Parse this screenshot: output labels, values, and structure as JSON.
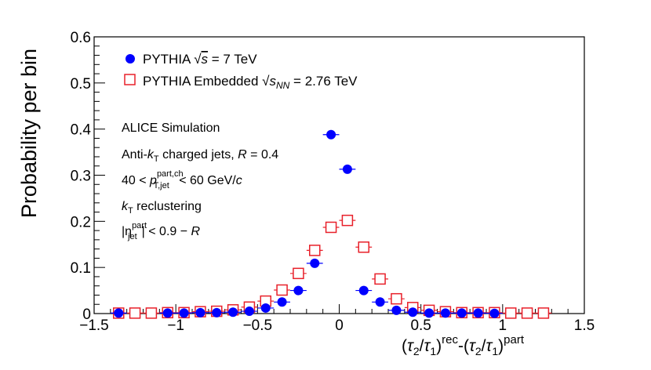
{
  "chart_data": {
    "type": "scatter",
    "title": "",
    "ylabel": "Probability per bin",
    "xlabel": {
      "lead": "(",
      "tau2": "τ",
      "sub2": "2",
      "slash": "/",
      "tau1": "τ",
      "sub1": "1",
      "close_rec": ")",
      "sup_rec": "rec",
      "dash": "-(",
      "tau2b": "τ",
      "sub2b": "2",
      "slashb": "/",
      "tau1b": "τ",
      "sub1b": "1",
      "close_part": ")",
      "sup_part": "part"
    },
    "xlim": [
      -1.5,
      1.5
    ],
    "ylim": [
      0,
      0.6
    ],
    "xticks": [
      -1.5,
      -1,
      -0.5,
      0,
      0.5,
      1,
      1.5
    ],
    "xtick_labels": [
      "−1.5",
      "−1",
      "−0.5",
      "0",
      "0.5",
      "1",
      "1.5"
    ],
    "yticks": [
      0,
      0.1,
      0.2,
      0.3,
      0.4,
      0.5,
      0.6
    ],
    "ytick_labels": [
      "0",
      "0.1",
      "0.2",
      "0.3",
      "0.4",
      "0.5",
      "0.6"
    ],
    "bin_halfwidth": 0.05,
    "colors": {
      "series1": "#0000ff",
      "series2": "#e8202a"
    },
    "series": [
      {
        "name": "PYTHIA √s = 7 TeV",
        "marker": "filled-circle",
        "x": [
          -1.35,
          -1.05,
          -0.95,
          -0.85,
          -0.75,
          -0.65,
          -0.55,
          -0.45,
          -0.35,
          -0.25,
          -0.15,
          -0.05,
          0.05,
          0.15,
          0.25,
          0.35,
          0.45,
          0.55,
          0.65,
          0.75,
          0.85,
          0.95
        ],
        "y": [
          0.001,
          0.001,
          0.001,
          0.002,
          0.002,
          0.003,
          0.005,
          0.012,
          0.025,
          0.05,
          0.109,
          0.388,
          0.313,
          0.05,
          0.025,
          0.007,
          0.003,
          0.001,
          0.001,
          0.001,
          0.001,
          0.0005
        ]
      },
      {
        "name": "PYTHIA Embedded √sNN = 2.76 TeV",
        "marker": "open-square",
        "x": [
          -1.35,
          -1.25,
          -1.15,
          -1.05,
          -0.95,
          -0.85,
          -0.75,
          -0.65,
          -0.55,
          -0.45,
          -0.35,
          -0.25,
          -0.15,
          -0.05,
          0.05,
          0.15,
          0.25,
          0.35,
          0.45,
          0.55,
          0.65,
          0.75,
          0.85,
          0.95,
          1.05,
          1.15,
          1.25
        ],
        "y": [
          0.001,
          0.001,
          0.001,
          0.002,
          0.002,
          0.004,
          0.005,
          0.008,
          0.014,
          0.027,
          0.051,
          0.087,
          0.137,
          0.187,
          0.202,
          0.144,
          0.075,
          0.032,
          0.013,
          0.007,
          0.004,
          0.002,
          0.002,
          0.002,
          0.001,
          0.001,
          0.001
        ]
      }
    ],
    "legend": {
      "placement": "top-left",
      "entry1": {
        "label": "PYTHIA ",
        "sqrt": "√",
        "s": "s",
        "rest": " = 7 TeV"
      },
      "entry2": {
        "label": "PYTHIA Embedded ",
        "sqrt": "√",
        "s": "s",
        "sub": "NN",
        "rest": " = 2.76 TeV"
      }
    },
    "annotations": {
      "line1": "ALICE Simulation",
      "line2": {
        "pre": "Anti-",
        "k": "k",
        "ksub": "T",
        "mid": " charged jets, ",
        "R": "R",
        "post": " = 0.4"
      },
      "line3": {
        "pre": "40 < ",
        "p": "p",
        "sup": "part,ch",
        "sub": "T,jet",
        "mid": " < 60 GeV/",
        "c": "c"
      },
      "line4": {
        "k": "k",
        "ksub": "T",
        "rest": " reclustering"
      },
      "line5": {
        "open": "|",
        "eta": "η",
        "sup": "part",
        "sub": "jet",
        "mid": "| < 0.9 − ",
        "R": "R"
      }
    }
  }
}
